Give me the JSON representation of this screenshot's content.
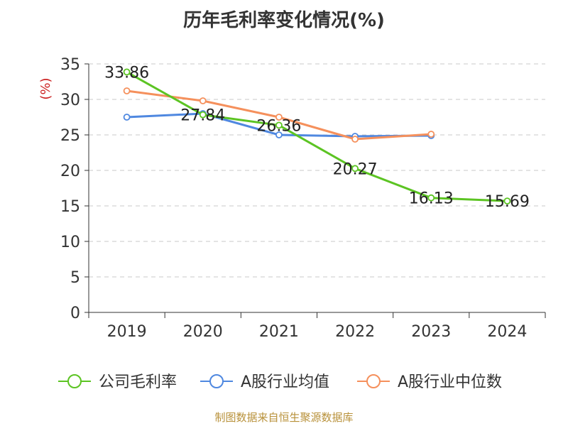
{
  "chart_data": {
    "type": "line",
    "title": "历年毛利率变化情况(%)",
    "ylabel": "(%)",
    "xlabel": "",
    "categories": [
      "2019",
      "2020",
      "2021",
      "2022",
      "2023",
      "2024"
    ],
    "ylim": [
      0,
      35
    ],
    "yticks": [
      "0",
      "5",
      "10",
      "15",
      "20",
      "25",
      "30",
      "35"
    ],
    "grid": true,
    "legend_position": "bottom",
    "series": [
      {
        "name": "公司毛利率",
        "color": "#5cc423",
        "values": [
          33.86,
          27.84,
          26.36,
          20.27,
          16.13,
          15.69
        ],
        "data_labels": [
          "33.86",
          "27.84",
          "26.36",
          "20.27",
          "16.13",
          "15.69"
        ]
      },
      {
        "name": "A股行业均值",
        "color": "#4f88e0",
        "values": [
          27.5,
          28.0,
          25.0,
          24.8,
          24.9,
          null
        ]
      },
      {
        "name": "A股行业中位数",
        "color": "#f5905c",
        "values": [
          31.2,
          29.8,
          27.5,
          24.4,
          25.1,
          null
        ]
      }
    ],
    "source": "制图数据来自恒生聚源数据库"
  }
}
